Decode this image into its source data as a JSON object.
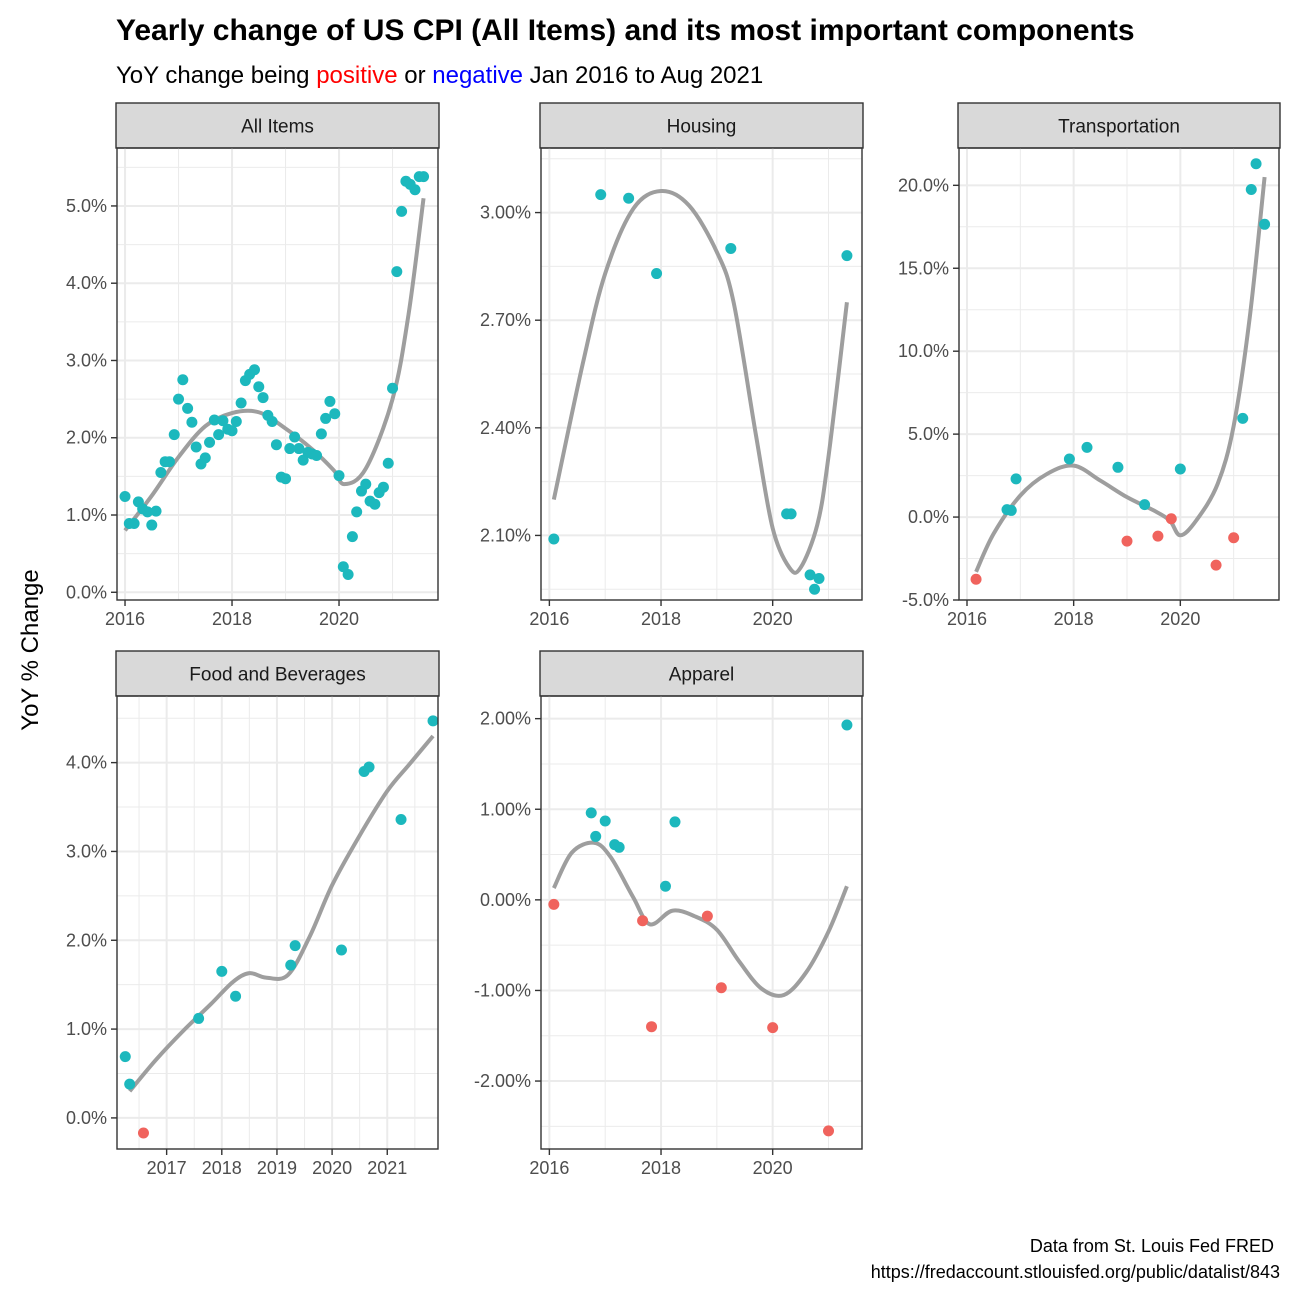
{
  "title": "Yearly change of US CPI (All Items) and its most important components",
  "subtitle": {
    "before": "YoY change being ",
    "positive_word": "positive",
    "middle": " or ",
    "negative_word": "negative",
    "after": " Jan 2016 to Aug 2021"
  },
  "ylabel": "YoY % Change",
  "caption": {
    "line1": "Data from St. Louis Fed FRED",
    "line2": "https://fredaccount.stlouisfed.org/public/datalist/843"
  },
  "colors": {
    "positive_word": "#ff0000",
    "negative_word": "#0000ff",
    "point_positive": "#1cb8bd",
    "point_negative": "#f0635d",
    "smooth_line": "#9e9e9e",
    "strip_fill": "#d9d9d9",
    "grid": "#ebebeb"
  },
  "chart_data": [
    {
      "panel": "All Items",
      "type": "scatter",
      "xlim": [
        2015.85,
        2021.85
      ],
      "ylim": [
        -0.001,
        0.0575
      ],
      "xticks": [
        2016,
        2018,
        2020
      ],
      "xtick_labels": [
        "2016",
        "2018",
        "2020"
      ],
      "yticks": [
        0,
        0.01,
        0.02,
        0.03,
        0.04,
        0.05
      ],
      "ytick_labels": [
        "0.0%",
        "1.0%",
        "2.0%",
        "3.0%",
        "4.0%",
        "5.0%"
      ],
      "x": [
        2016.0,
        2016.08,
        2016.17,
        2016.25,
        2016.33,
        2016.42,
        2016.5,
        2016.58,
        2016.67,
        2016.75,
        2016.83,
        2016.92,
        2017.0,
        2017.08,
        2017.17,
        2017.25,
        2017.33,
        2017.42,
        2017.5,
        2017.58,
        2017.67,
        2017.75,
        2017.83,
        2017.92,
        2018.0,
        2018.08,
        2018.17,
        2018.25,
        2018.33,
        2018.42,
        2018.5,
        2018.58,
        2018.67,
        2018.75,
        2018.83,
        2018.92,
        2019.0,
        2019.08,
        2019.17,
        2019.25,
        2019.33,
        2019.42,
        2019.5,
        2019.58,
        2019.67,
        2019.75,
        2019.83,
        2019.92,
        2020.0,
        2020.08,
        2020.17,
        2020.25,
        2020.33,
        2020.42,
        2020.5,
        2020.58,
        2020.67,
        2020.75,
        2020.83,
        2020.92,
        2021.0,
        2021.08,
        2021.17,
        2021.25,
        2021.33,
        2021.42,
        2021.5,
        2021.58
      ],
      "y": [
        0.0124,
        0.0089,
        0.0089,
        0.0117,
        0.0108,
        0.0104,
        0.0087,
        0.0105,
        0.0155,
        0.0169,
        0.0169,
        0.0204,
        0.025,
        0.0275,
        0.0238,
        0.022,
        0.0188,
        0.0166,
        0.0174,
        0.0194,
        0.0223,
        0.0204,
        0.0222,
        0.0211,
        0.0209,
        0.0221,
        0.0245,
        0.0274,
        0.0282,
        0.0288,
        0.0266,
        0.0252,
        0.0229,
        0.0221,
        0.0191,
        0.0149,
        0.0147,
        0.0186,
        0.0201,
        0.0186,
        0.0171,
        0.0181,
        0.0179,
        0.0177,
        0.0205,
        0.0225,
        0.0247,
        0.0231,
        0.0151,
        0.0033,
        0.0023,
        0.0072,
        0.0104,
        0.0131,
        0.014,
        0.0118,
        0.0114,
        0.0129,
        0.0136,
        0.0167,
        0.0264,
        0.0415,
        0.0493,
        0.0532,
        0.0528,
        0.0521,
        0.0538,
        0.0538
      ],
      "smooth": {
        "x": [
          2016.0,
          2016.5,
          2017.0,
          2017.5,
          2018.0,
          2018.5,
          2019.0,
          2019.5,
          2019.9,
          2020.1,
          2020.5,
          2021.0,
          2021.3,
          2021.58
        ],
        "y": [
          0.008,
          0.0125,
          0.0175,
          0.0215,
          0.0232,
          0.0233,
          0.0212,
          0.0185,
          0.0158,
          0.014,
          0.016,
          0.025,
          0.036,
          0.051
        ]
      }
    },
    {
      "panel": "Housing",
      "type": "scatter",
      "xlim": [
        2015.85,
        2021.6
      ],
      "ylim": [
        0.0192,
        0.0318
      ],
      "xticks": [
        2016,
        2018,
        2020
      ],
      "xtick_labels": [
        "2016",
        "2018",
        "2020"
      ],
      "yticks": [
        0.021,
        0.024,
        0.027,
        0.03
      ],
      "ytick_labels": [
        "2.10%",
        "2.40%",
        "2.70%",
        "3.00%"
      ],
      "x": [
        2016.08,
        2016.92,
        2017.42,
        2017.92,
        2019.25,
        2020.25,
        2020.33,
        2020.67,
        2020.75,
        2020.83,
        2021.33
      ],
      "y": [
        0.0209,
        0.0305,
        0.0304,
        0.0283,
        0.029,
        0.0216,
        0.0216,
        0.0199,
        0.0195,
        0.0198,
        0.0288
      ],
      "smooth": {
        "x": [
          2016.08,
          2016.6,
          2017.0,
          2017.5,
          2018.0,
          2018.5,
          2019.0,
          2019.3,
          2019.7,
          2020.0,
          2020.3,
          2020.5,
          2020.8,
          2021.0,
          2021.33
        ],
        "y": [
          0.022,
          0.0258,
          0.0283,
          0.0301,
          0.0306,
          0.0302,
          0.0289,
          0.0275,
          0.0238,
          0.0212,
          0.0201,
          0.0201,
          0.0213,
          0.0232,
          0.0275
        ]
      }
    },
    {
      "panel": "Transportation",
      "type": "scatter",
      "xlim": [
        2015.85,
        2021.85
      ],
      "ylim": [
        -0.05,
        0.2225
      ],
      "xticks": [
        2016,
        2018,
        2020
      ],
      "xtick_labels": [
        "2016",
        "2018",
        "2020"
      ],
      "yticks": [
        -0.05,
        0,
        0.05,
        0.1,
        0.15,
        0.2
      ],
      "ytick_labels": [
        "-5.0%",
        "0.0%",
        "5.0%",
        "10.0%",
        "15.0%",
        "20.0%"
      ],
      "x": [
        2016.17,
        2016.75,
        2016.83,
        2016.92,
        2017.92,
        2018.25,
        2018.83,
        2019.0,
        2019.33,
        2019.58,
        2019.83,
        2020.0,
        2020.67,
        2021.0,
        2021.17,
        2021.33,
        2021.42,
        2021.58
      ],
      "y": [
        -0.0375,
        0.0045,
        0.004,
        0.023,
        0.035,
        0.042,
        0.03,
        -0.0145,
        0.0075,
        -0.0115,
        -0.001,
        0.029,
        -0.029,
        -0.0125,
        0.0595,
        0.1975,
        0.213,
        0.1765
      ],
      "smooth": {
        "x": [
          2016.17,
          2016.5,
          2017.0,
          2017.5,
          2018.0,
          2018.5,
          2019.0,
          2019.5,
          2019.8,
          2020.0,
          2020.3,
          2020.7,
          2021.0,
          2021.3,
          2021.58
        ],
        "y": [
          -0.033,
          -0.01,
          0.013,
          0.026,
          0.031,
          0.022,
          0.012,
          0.004,
          -0.002,
          -0.011,
          -0.002,
          0.02,
          0.055,
          0.12,
          0.205
        ]
      }
    },
    {
      "panel": "Food and Beverages",
      "type": "scatter",
      "xlim": [
        2016.1,
        2021.92
      ],
      "ylim": [
        -0.0035,
        0.0475
      ],
      "xticks": [
        2017,
        2018,
        2019,
        2020,
        2021
      ],
      "xtick_labels": [
        "2017",
        "2018",
        "2019",
        "2020",
        "2021"
      ],
      "yticks": [
        0,
        0.01,
        0.02,
        0.03,
        0.04
      ],
      "ytick_labels": [
        "0.0%",
        "1.0%",
        "2.0%",
        "3.0%",
        "4.0%"
      ],
      "x": [
        2016.25,
        2016.33,
        2016.58,
        2017.58,
        2018.0,
        2018.25,
        2019.25,
        2019.33,
        2020.17,
        2020.58,
        2020.67,
        2021.25,
        2021.83
      ],
      "y": [
        0.0069,
        0.0038,
        -0.0017,
        0.0112,
        0.0165,
        0.0137,
        0.0172,
        0.0194,
        0.0189,
        0.039,
        0.0395,
        0.0336,
        0.0447
      ],
      "smooth": {
        "x": [
          2016.33,
          2016.8,
          2017.3,
          2017.8,
          2018.2,
          2018.5,
          2018.8,
          2019.2,
          2019.6,
          2020.0,
          2020.5,
          2021.0,
          2021.4,
          2021.83
        ],
        "y": [
          0.003,
          0.0065,
          0.0098,
          0.0128,
          0.0153,
          0.0163,
          0.0158,
          0.0161,
          0.0205,
          0.0262,
          0.0318,
          0.0368,
          0.0398,
          0.043
        ]
      }
    },
    {
      "panel": "Apparel",
      "type": "scatter",
      "xlim": [
        2015.85,
        2021.6
      ],
      "ylim": [
        -0.0275,
        0.0225
      ],
      "xticks": [
        2016,
        2018,
        2020
      ],
      "xtick_labels": [
        "2016",
        "2018",
        "2020"
      ],
      "yticks": [
        -0.02,
        -0.01,
        0,
        0.01,
        0.02
      ],
      "ytick_labels": [
        "-2.00%",
        "-1.00%",
        "0.00%",
        "1.00%",
        "2.00%"
      ],
      "x": [
        2016.08,
        2016.75,
        2016.83,
        2017.0,
        2017.17,
        2017.25,
        2017.67,
        2017.83,
        2018.08,
        2018.25,
        2018.83,
        2019.08,
        2020.0,
        2021.0,
        2021.33
      ],
      "y": [
        -0.0005,
        0.0096,
        0.007,
        0.0087,
        0.0061,
        0.0058,
        -0.0023,
        -0.014,
        0.0015,
        0.0086,
        -0.0018,
        -0.0097,
        -0.0141,
        -0.0255,
        0.0193
      ],
      "smooth": {
        "x": [
          2016.08,
          2016.4,
          2016.8,
          2017.1,
          2017.5,
          2017.8,
          2018.2,
          2018.6,
          2019.0,
          2019.4,
          2019.8,
          2020.2,
          2020.6,
          2021.0,
          2021.33
        ],
        "y": [
          0.0013,
          0.0052,
          0.0063,
          0.0047,
          0.0003,
          -0.0027,
          -0.0012,
          -0.0018,
          -0.0033,
          -0.0068,
          -0.0098,
          -0.0105,
          -0.008,
          -0.0035,
          0.0015
        ]
      }
    }
  ]
}
